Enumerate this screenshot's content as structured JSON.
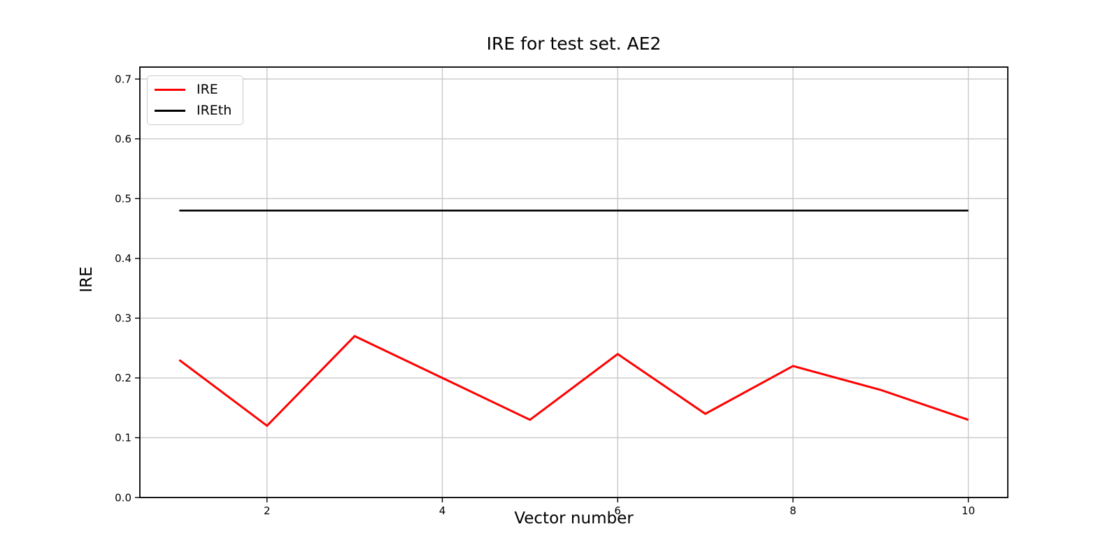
{
  "figure": {
    "title": "IRE for test set. AE2",
    "xlabel": "Vector number",
    "ylabel": "IRE",
    "background": "#ffffff"
  },
  "legend": {
    "position": "upper-left",
    "items": [
      {
        "label": "IRE",
        "color": "#ff0000"
      },
      {
        "label": "IREth",
        "color": "#000000"
      }
    ]
  },
  "chart_data": {
    "type": "line",
    "title": "IRE for test set. AE2",
    "xlabel": "Vector number",
    "ylabel": "IRE",
    "x": [
      1,
      2,
      3,
      4,
      5,
      6,
      7,
      8,
      9,
      10
    ],
    "series": [
      {
        "name": "IRE",
        "color": "#ff0000",
        "linewidth": 3,
        "values": [
          0.23,
          0.12,
          0.27,
          0.2,
          0.13,
          0.24,
          0.14,
          0.22,
          0.18,
          0.13
        ]
      },
      {
        "name": "IREth",
        "color": "#000000",
        "linewidth": 2.6,
        "values": [
          0.48,
          0.48,
          0.48,
          0.48,
          0.48,
          0.48,
          0.48,
          0.48,
          0.48,
          0.48
        ]
      }
    ],
    "xlim": [
      0.55,
      10.45
    ],
    "ylim": [
      0,
      0.72
    ],
    "xticks": [
      {
        "v": 2,
        "label": "2"
      },
      {
        "v": 4,
        "label": "4"
      },
      {
        "v": 6,
        "label": "6"
      },
      {
        "v": 8,
        "label": "8"
      },
      {
        "v": 10,
        "label": "10"
      }
    ],
    "yticks": [
      {
        "v": 0.0,
        "label": "0.0"
      },
      {
        "v": 0.1,
        "label": "0.1"
      },
      {
        "v": 0.2,
        "label": "0.2"
      },
      {
        "v": 0.3,
        "label": "0.3"
      },
      {
        "v": 0.4,
        "label": "0.4"
      },
      {
        "v": 0.5,
        "label": "0.5"
      },
      {
        "v": 0.6,
        "label": "0.6"
      },
      {
        "v": 0.7,
        "label": "0.7"
      }
    ],
    "grid": true,
    "grid_color": "#c8c8c8",
    "spine_color": "#000000",
    "legend_position": "upper-left"
  }
}
